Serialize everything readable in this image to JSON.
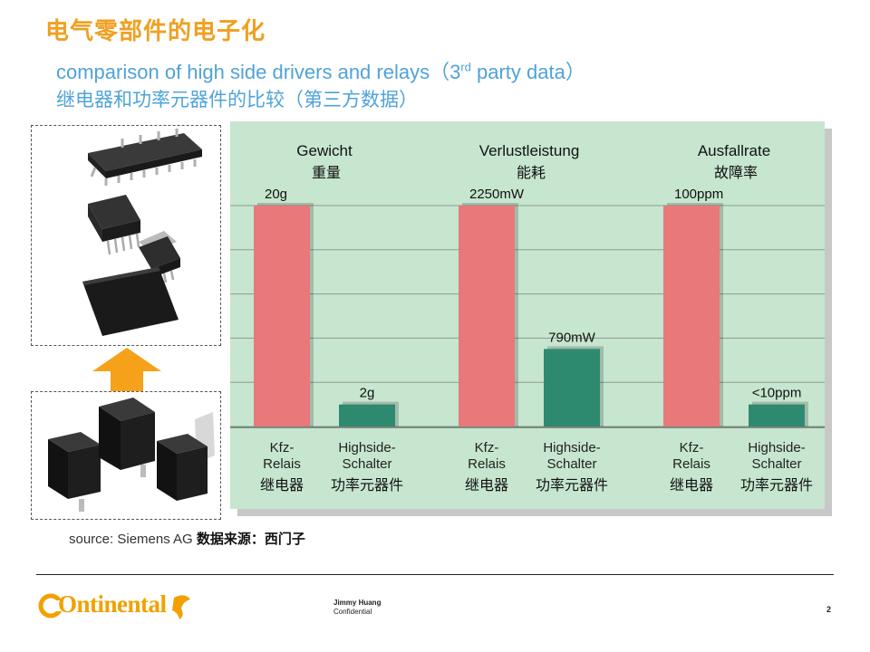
{
  "header": {
    "title_cn": "电气零部件的电子化",
    "subtitle_en_pre": "comparison of high side drivers and relays（3",
    "subtitle_en_sup": "rd",
    "subtitle_en_post": " party data）",
    "subtitle_cn": "继电器和功率元器件的比较（第三方数据）"
  },
  "chart_data": {
    "type": "bar",
    "groups": [
      {
        "title_de": "Gewicht",
        "title_cn": "重量",
        "bars": [
          {
            "label_de": "Kfz-\nRelais",
            "label_cn": "继电器",
            "value_label": "20g",
            "relative": 1.0,
            "color": "#e8787a"
          },
          {
            "label_de": "Highside-\nSchalter",
            "label_cn": "功率元器件",
            "value_label": "2g",
            "relative": 0.1,
            "color": "#2e8a6e"
          }
        ]
      },
      {
        "title_de": "Verlustleistung",
        "title_cn": "能耗",
        "bars": [
          {
            "label_de": "Kfz-\nRelais",
            "label_cn": "继电器",
            "value_label": "2250mW",
            "relative": 1.0,
            "color": "#e8787a"
          },
          {
            "label_de": "Highside-\nSchalter",
            "label_cn": "功率元器件",
            "value_label": "790mW",
            "relative": 0.351,
            "color": "#2e8a6e"
          }
        ]
      },
      {
        "title_de": "Ausfallrate",
        "title_cn": "故障率",
        "bars": [
          {
            "label_de": "Kfz-\nRelais",
            "label_cn": "继电器",
            "value_label": "100ppm",
            "relative": 1.0,
            "color": "#e8787a"
          },
          {
            "label_de": "Highside-\nSchalter",
            "label_cn": "功率元器件",
            "value_label": "<10ppm",
            "relative": 0.1,
            "color": "#2e8a6e"
          }
        ]
      }
    ],
    "grid": true,
    "gridlines": 5
  },
  "source": {
    "text": "source: Siemens AG ",
    "cn": "数据来源：西门子"
  },
  "footer": {
    "logo": "Ontinental",
    "author": "Jimmy Huang",
    "confidential": "Confidential",
    "page": "2"
  },
  "colors": {
    "accent_orange": "#f0a020",
    "subtitle_blue": "#4fa3d8",
    "panel_green": "#c6e6cf",
    "relay_bar": "#e8787a",
    "switch_bar": "#2e8a6e"
  }
}
